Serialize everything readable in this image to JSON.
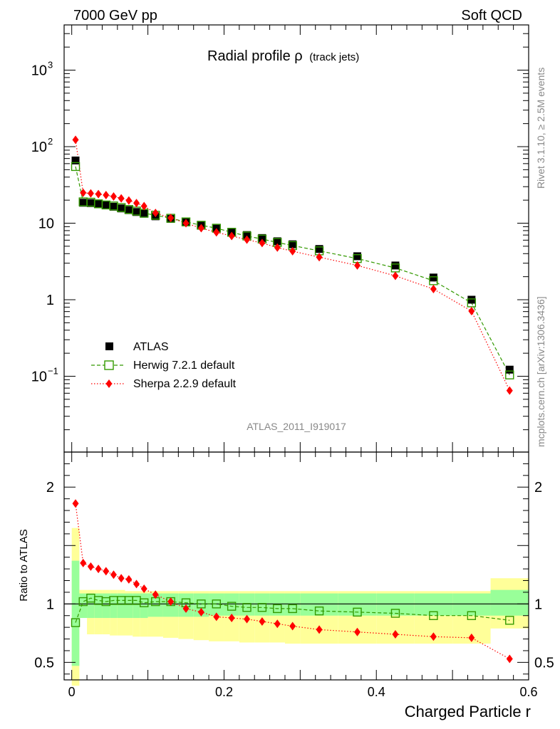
{
  "header": {
    "left": "7000 GeV pp",
    "right": "Soft QCD",
    "side_top": "Rivet 3.1.10, ≥ 2.5M events",
    "side_bottom": "mcplots.cern.ch [arXiv:1306.3436]"
  },
  "chart_data": [
    {
      "type": "scatter",
      "title": "Radial profile ρ",
      "title_suffix": "(track jets)",
      "watermark": "ATLAS_2011_I919017",
      "yscale": "log",
      "xlim": [
        -0.01,
        0.6
      ],
      "ylim": [
        0.01,
        4000
      ],
      "y_ticks": [
        {
          "v": 0.1,
          "base": "10",
          "exp": "−1"
        },
        {
          "v": 1,
          "base": "1",
          "exp": ""
        },
        {
          "v": 10,
          "base": "10",
          "exp": ""
        },
        {
          "v": 100,
          "base": "10",
          "exp": "2"
        },
        {
          "v": 1000,
          "base": "10",
          "exp": "3"
        }
      ],
      "legend_position": "bottom-left",
      "x": [
        0.005,
        0.015,
        0.025,
        0.035,
        0.045,
        0.055,
        0.065,
        0.075,
        0.085,
        0.095,
        0.11,
        0.13,
        0.15,
        0.17,
        0.19,
        0.21,
        0.23,
        0.25,
        0.27,
        0.29,
        0.325,
        0.375,
        0.425,
        0.475,
        0.525,
        0.575
      ],
      "series": [
        {
          "name": "ATLAS",
          "color": "#000000",
          "marker": "square-filled",
          "values": [
            66,
            18.5,
            18.3,
            17.7,
            17.2,
            16.4,
            15.6,
            14.8,
            14.0,
            13.3,
            12.3,
            11.4,
            10.3,
            9.3,
            8.5,
            7.7,
            7.0,
            6.4,
            5.8,
            5.3,
            4.6,
            3.7,
            2.8,
            1.95,
            1.0,
            0.122
          ]
        },
        {
          "name": "Herwig 7.2.1 default",
          "color": "#339900",
          "marker": "square-open",
          "line": "dashed",
          "values": [
            55,
            19.0,
            18.8,
            17.9,
            17.3,
            16.8,
            16.0,
            15.1,
            14.4,
            13.5,
            12.7,
            11.6,
            10.4,
            9.4,
            8.6,
            7.6,
            6.8,
            6.2,
            5.6,
            5.1,
            4.35,
            3.45,
            2.6,
            1.77,
            0.91,
            0.104
          ]
        },
        {
          "name": "Sherpa 2.2.9 default",
          "color": "#ff0000",
          "marker": "diamond-filled",
          "line": "dotted",
          "values": [
            123,
            25.0,
            24.5,
            24.0,
            23.3,
            22.3,
            21.1,
            19.8,
            18.3,
            16.7,
            13.6,
            11.7,
            10.0,
            8.6,
            7.6,
            6.8,
            6.1,
            5.5,
            4.8,
            4.3,
            3.6,
            2.8,
            2.05,
            1.38,
            0.71,
            0.065
          ]
        }
      ]
    },
    {
      "type": "scatter",
      "ylabel": "Ratio to ATLAS",
      "xlabel": "Charged Particle r",
      "xlim": [
        -0.01,
        0.6
      ],
      "ylim": [
        0.35,
        2.3
      ],
      "x_ticks": [
        0,
        0.2,
        0.4,
        0.6
      ],
      "x_tick_labels": [
        "0",
        "0.2",
        "0.4",
        "0.6"
      ],
      "y_tick_labels": [
        {
          "v": 0.5,
          "label": "0.5"
        },
        {
          "v": 1,
          "label": "1"
        },
        {
          "v": 2,
          "label": "2"
        }
      ],
      "band_colors": {
        "outer": "#ffff99",
        "inner": "#99ff99"
      },
      "bands": {
        "x_edges": [
          0.0,
          0.01,
          0.02,
          0.03,
          0.04,
          0.05,
          0.06,
          0.07,
          0.08,
          0.09,
          0.1,
          0.12,
          0.14,
          0.16,
          0.18,
          0.2,
          0.22,
          0.24,
          0.26,
          0.28,
          0.3,
          0.35,
          0.4,
          0.45,
          0.5,
          0.55,
          0.6
        ],
        "outer_lo": [
          0.3,
          0.88,
          0.74,
          0.74,
          0.74,
          0.73,
          0.73,
          0.73,
          0.72,
          0.72,
          0.72,
          0.71,
          0.7,
          0.69,
          0.68,
          0.68,
          0.67,
          0.67,
          0.67,
          0.66,
          0.66,
          0.66,
          0.66,
          0.66,
          0.66,
          0.79
        ],
        "outer_hi": [
          1.65,
          1.12,
          1.12,
          1.12,
          1.12,
          1.12,
          1.12,
          1.11,
          1.11,
          1.11,
          1.11,
          1.11,
          1.11,
          1.11,
          1.11,
          1.11,
          1.11,
          1.11,
          1.11,
          1.11,
          1.11,
          1.11,
          1.11,
          1.11,
          1.11,
          1.22
        ],
        "inner_lo": [
          0.47,
          0.88,
          0.88,
          0.88,
          0.88,
          0.88,
          0.88,
          0.88,
          0.88,
          0.88,
          0.89,
          0.89,
          0.89,
          0.89,
          0.9,
          0.9,
          0.9,
          0.9,
          0.9,
          0.9,
          0.9,
          0.9,
          0.9,
          0.9,
          0.9,
          0.9
        ],
        "inner_hi": [
          1.37,
          1.09,
          1.09,
          1.09,
          1.09,
          1.09,
          1.09,
          1.09,
          1.09,
          1.09,
          1.09,
          1.09,
          1.09,
          1.09,
          1.09,
          1.09,
          1.09,
          1.09,
          1.09,
          1.09,
          1.09,
          1.09,
          1.09,
          1.09,
          1.09,
          1.12
        ]
      },
      "x": [
        0.005,
        0.015,
        0.025,
        0.035,
        0.045,
        0.055,
        0.065,
        0.075,
        0.085,
        0.095,
        0.11,
        0.13,
        0.15,
        0.17,
        0.19,
        0.21,
        0.23,
        0.25,
        0.27,
        0.29,
        0.325,
        0.375,
        0.425,
        0.475,
        0.525,
        0.575
      ],
      "series": [
        {
          "name": "Herwig 7.2.1 default",
          "color": "#339900",
          "marker": "square-open",
          "line": "dashed",
          "values": [
            0.84,
            1.02,
            1.05,
            1.03,
            1.02,
            1.03,
            1.03,
            1.03,
            1.03,
            1.01,
            1.02,
            1.02,
            1.01,
            1.0,
            1.0,
            0.98,
            0.97,
            0.97,
            0.96,
            0.96,
            0.94,
            0.93,
            0.92,
            0.9,
            0.9,
            0.86
          ]
        },
        {
          "name": "Sherpa 2.2.9 default",
          "color": "#ff0000",
          "marker": "diamond-filled",
          "line": "dotted",
          "values": [
            1.86,
            1.35,
            1.32,
            1.3,
            1.28,
            1.25,
            1.22,
            1.21,
            1.17,
            1.13,
            1.08,
            1.02,
            0.96,
            0.93,
            0.89,
            0.88,
            0.87,
            0.85,
            0.83,
            0.81,
            0.78,
            0.76,
            0.74,
            0.72,
            0.71,
            0.53
          ]
        }
      ]
    }
  ]
}
